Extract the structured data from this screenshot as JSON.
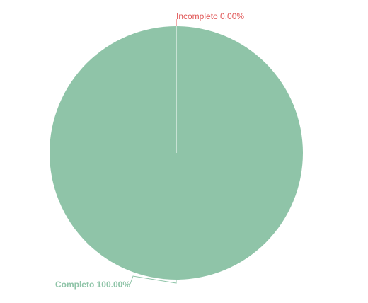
{
  "chart_data": {
    "type": "pie",
    "slices": [
      {
        "label": "Incompleto",
        "value": 0.0,
        "percent_text": "0.00%",
        "color": "#e05555"
      },
      {
        "label": "Completo",
        "value": 100.0,
        "percent_text": "100.00%",
        "color": "#8fc4a8"
      }
    ]
  },
  "labels": {
    "incomplete": "Incompleto 0.00%",
    "complete": "Completo 100.00%"
  },
  "colors": {
    "complete": "#8fc4a8",
    "incomplete": "#e05555",
    "separator": "#ffffff"
  }
}
